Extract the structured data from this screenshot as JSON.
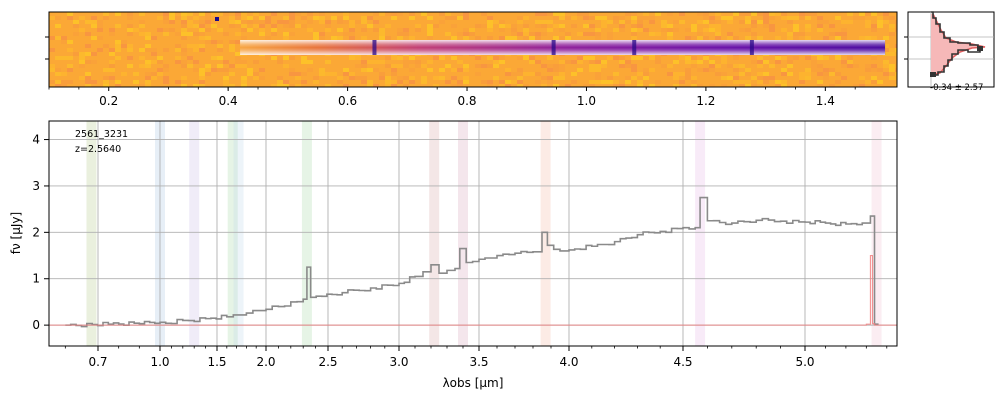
{
  "figure": {
    "object_id": "2561_3231",
    "redshift_label": "z=2.5640"
  },
  "chart_data": [
    {
      "type": "heatmap",
      "name": "2D spectrum",
      "colormap": "plasma_r",
      "x_tick_labels": [
        "0.2",
        "0.4",
        "0.6",
        "0.8",
        "1.0",
        "1.2",
        "1.4"
      ],
      "x_ticks": [
        0.2,
        0.4,
        0.6,
        0.8,
        1.0,
        1.2,
        1.4
      ],
      "xlim": [
        0.1,
        1.52
      ],
      "trace_end": 1.5,
      "trace_emission_lines": [
        0.645,
        0.945,
        1.08,
        1.277
      ]
    },
    {
      "type": "area",
      "name": "cross-dispersion profile",
      "annotation": "-0.34 ± 2.57"
    },
    {
      "type": "line",
      "xlabel": "λobs [μm]",
      "ylabel": "fν [μJy]",
      "xscale": "spectral (non-linear)",
      "x_tick_labels": [
        "0.7",
        "1.0",
        "1.5",
        "2.0",
        "2.5",
        "3.0",
        "3.5",
        "4.0",
        "4.5",
        "5.0"
      ],
      "x_ticks": [
        0.7,
        1.0,
        1.5,
        2.0,
        2.5,
        3.0,
        3.5,
        4.0,
        4.5,
        5.0
      ],
      "y_tick_labels": [
        "0",
        "1",
        "2",
        "3",
        "4"
      ],
      "y_ticks": [
        0,
        1,
        2,
        3,
        4
      ],
      "xlim": [
        0.55,
        5.45
      ],
      "ylim": [
        -0.45,
        4.4
      ],
      "grid": true,
      "series": [
        {
          "color": "#8a8a8a",
          "x": [
            0.6,
            0.75,
            0.9,
            1.0,
            1.05,
            1.2,
            1.4,
            1.6,
            1.8,
            2.0,
            2.1,
            2.2,
            2.3,
            2.33,
            2.36,
            2.45,
            2.6,
            2.8,
            3.0,
            3.1,
            3.15,
            3.2,
            3.25,
            3.3,
            3.35,
            3.38,
            3.42,
            3.5,
            3.6,
            3.7,
            3.8,
            3.85,
            3.88,
            3.95,
            4.0,
            4.1,
            4.2,
            4.3,
            4.4,
            4.5,
            4.55,
            4.57,
            4.6,
            4.7,
            4.8,
            4.9,
            5.0,
            5.1,
            5.2,
            5.28,
            5.32,
            5.34,
            5.36
          ],
          "y": [
            0.0,
            0.02,
            0.03,
            0.06,
            0.04,
            0.1,
            0.14,
            0.18,
            0.26,
            0.34,
            0.4,
            0.5,
            0.56,
            1.25,
            0.6,
            0.62,
            0.7,
            0.8,
            0.9,
            1.05,
            1.15,
            1.3,
            1.12,
            1.18,
            1.22,
            1.65,
            1.35,
            1.42,
            1.5,
            1.55,
            1.58,
            2.0,
            1.72,
            1.6,
            1.62,
            1.7,
            1.8,
            1.95,
            2.02,
            2.1,
            2.1,
            2.75,
            2.25,
            2.2,
            2.26,
            2.24,
            2.22,
            2.2,
            2.18,
            2.2,
            2.35,
            0.02,
            0.02
          ]
        },
        {
          "color": "#f08080",
          "x": [
            0.55,
            1.0,
            2.0,
            3.0,
            4.0,
            5.0,
            5.3,
            5.32,
            5.33,
            5.34,
            5.45
          ],
          "y": [
            0.0,
            0.0,
            0.0,
            0.0,
            0.0,
            0.0,
            0.02,
            1.5,
            0.03,
            0.0,
            0.0
          ]
        }
      ],
      "line_bands": [
        {
          "center": 0.68,
          "color": "#b5c98a"
        },
        {
          "center": 1.0,
          "color": "#a9c6e3"
        },
        {
          "center": 1.3,
          "color": "#c8b9e6"
        },
        {
          "center": 1.66,
          "color": "#a6d9a6"
        },
        {
          "center": 1.72,
          "color": "#c0d6e8"
        },
        {
          "center": 2.33,
          "color": "#a6d9a6"
        },
        {
          "center": 3.22,
          "color": "#d6a6a6"
        },
        {
          "center": 3.4,
          "color": "#d6a6b9"
        },
        {
          "center": 3.87,
          "color": "#f5b8a0"
        },
        {
          "center": 4.57,
          "color": "#e6b8e6"
        },
        {
          "center": 5.35,
          "color": "#f0c0d0"
        }
      ]
    }
  ]
}
